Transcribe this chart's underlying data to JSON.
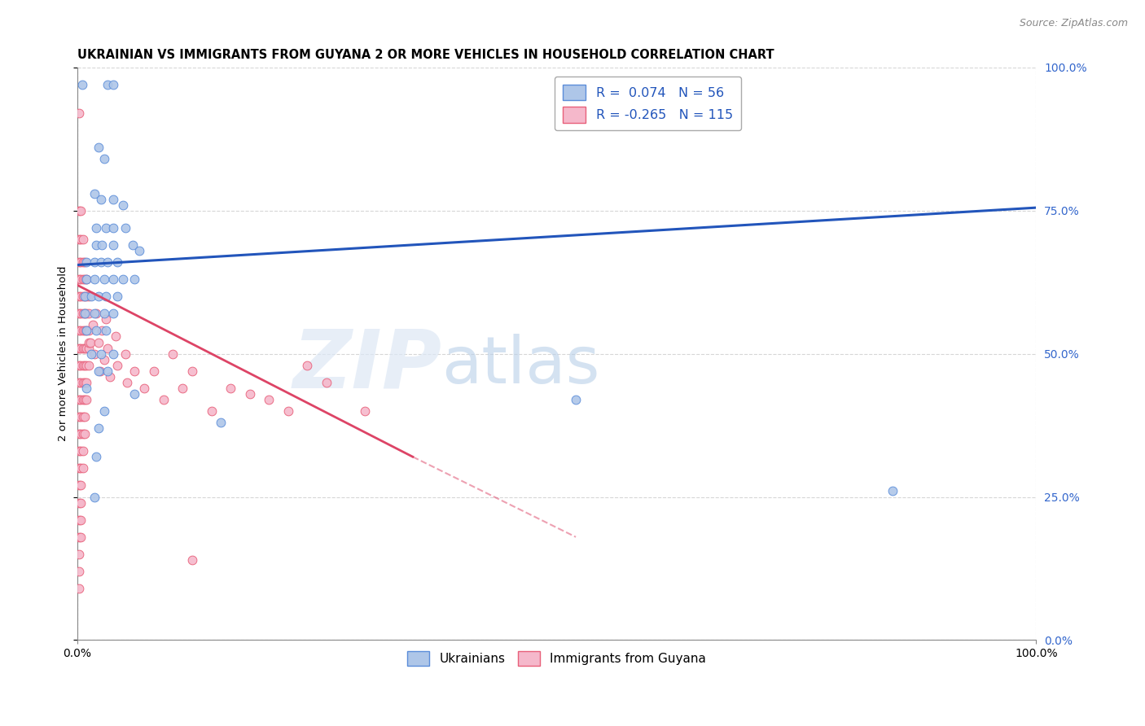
{
  "title": "UKRAINIAN VS IMMIGRANTS FROM GUYANA 2 OR MORE VEHICLES IN HOUSEHOLD CORRELATION CHART",
  "source_text": "Source: ZipAtlas.com",
  "ylabel": "2 or more Vehicles in Household",
  "xlim": [
    0,
    1.0
  ],
  "ylim": [
    0,
    1.0
  ],
  "xtick_labels": [
    "0.0%",
    "100.0%"
  ],
  "ytick_values": [
    0.0,
    0.25,
    0.5,
    0.75,
    1.0
  ],
  "ytick_labels": [
    "0.0%",
    "25.0%",
    "50.0%",
    "75.0%",
    "100.0%"
  ],
  "legend_blue_label": "R =  0.074   N = 56",
  "legend_pink_label": "R = -0.265   N = 115",
  "legend_bottom_blue": "Ukrainians",
  "legend_bottom_pink": "Immigrants from Guyana",
  "watermark_zip": "ZIP",
  "watermark_atlas": "atlas",
  "blue_color": "#aec6e8",
  "blue_edge_color": "#5b8dd9",
  "pink_color": "#f5b8cb",
  "pink_edge_color": "#e8607a",
  "blue_line_color": "#2255bb",
  "pink_line_color": "#dd4466",
  "blue_line": [
    [
      0.0,
      0.655
    ],
    [
      1.0,
      0.755
    ]
  ],
  "pink_line_solid": [
    [
      0.0,
      0.62
    ],
    [
      0.35,
      0.32
    ]
  ],
  "pink_line_dashed": [
    [
      0.35,
      0.32
    ],
    [
      0.52,
      0.18
    ]
  ],
  "blue_scatter": [
    [
      0.005,
      0.97
    ],
    [
      0.032,
      0.97
    ],
    [
      0.038,
      0.97
    ],
    [
      0.022,
      0.86
    ],
    [
      0.028,
      0.84
    ],
    [
      0.018,
      0.78
    ],
    [
      0.025,
      0.77
    ],
    [
      0.038,
      0.77
    ],
    [
      0.048,
      0.76
    ],
    [
      0.02,
      0.72
    ],
    [
      0.03,
      0.72
    ],
    [
      0.038,
      0.72
    ],
    [
      0.05,
      0.72
    ],
    [
      0.02,
      0.69
    ],
    [
      0.026,
      0.69
    ],
    [
      0.038,
      0.69
    ],
    [
      0.058,
      0.69
    ],
    [
      0.065,
      0.68
    ],
    [
      0.01,
      0.66
    ],
    [
      0.018,
      0.66
    ],
    [
      0.025,
      0.66
    ],
    [
      0.032,
      0.66
    ],
    [
      0.042,
      0.66
    ],
    [
      0.01,
      0.63
    ],
    [
      0.018,
      0.63
    ],
    [
      0.028,
      0.63
    ],
    [
      0.038,
      0.63
    ],
    [
      0.048,
      0.63
    ],
    [
      0.06,
      0.63
    ],
    [
      0.008,
      0.6
    ],
    [
      0.015,
      0.6
    ],
    [
      0.022,
      0.6
    ],
    [
      0.03,
      0.6
    ],
    [
      0.042,
      0.6
    ],
    [
      0.008,
      0.57
    ],
    [
      0.018,
      0.57
    ],
    [
      0.028,
      0.57
    ],
    [
      0.038,
      0.57
    ],
    [
      0.01,
      0.54
    ],
    [
      0.02,
      0.54
    ],
    [
      0.03,
      0.54
    ],
    [
      0.015,
      0.5
    ],
    [
      0.025,
      0.5
    ],
    [
      0.038,
      0.5
    ],
    [
      0.022,
      0.47
    ],
    [
      0.032,
      0.47
    ],
    [
      0.01,
      0.44
    ],
    [
      0.028,
      0.4
    ],
    [
      0.022,
      0.37
    ],
    [
      0.02,
      0.32
    ],
    [
      0.018,
      0.25
    ],
    [
      0.06,
      0.43
    ],
    [
      0.15,
      0.38
    ],
    [
      0.52,
      0.42
    ],
    [
      0.85,
      0.26
    ]
  ],
  "pink_scatter": [
    [
      0.002,
      0.92
    ],
    [
      0.002,
      0.75
    ],
    [
      0.004,
      0.75
    ],
    [
      0.002,
      0.7
    ],
    [
      0.004,
      0.7
    ],
    [
      0.006,
      0.7
    ],
    [
      0.002,
      0.66
    ],
    [
      0.004,
      0.66
    ],
    [
      0.006,
      0.66
    ],
    [
      0.008,
      0.66
    ],
    [
      0.002,
      0.63
    ],
    [
      0.004,
      0.63
    ],
    [
      0.006,
      0.63
    ],
    [
      0.008,
      0.63
    ],
    [
      0.01,
      0.63
    ],
    [
      0.002,
      0.6
    ],
    [
      0.004,
      0.6
    ],
    [
      0.006,
      0.6
    ],
    [
      0.008,
      0.6
    ],
    [
      0.01,
      0.6
    ],
    [
      0.012,
      0.6
    ],
    [
      0.002,
      0.57
    ],
    [
      0.004,
      0.57
    ],
    [
      0.006,
      0.57
    ],
    [
      0.008,
      0.57
    ],
    [
      0.01,
      0.57
    ],
    [
      0.012,
      0.57
    ],
    [
      0.002,
      0.54
    ],
    [
      0.004,
      0.54
    ],
    [
      0.006,
      0.54
    ],
    [
      0.008,
      0.54
    ],
    [
      0.01,
      0.54
    ],
    [
      0.012,
      0.54
    ],
    [
      0.002,
      0.51
    ],
    [
      0.004,
      0.51
    ],
    [
      0.006,
      0.51
    ],
    [
      0.008,
      0.51
    ],
    [
      0.01,
      0.51
    ],
    [
      0.012,
      0.51
    ],
    [
      0.002,
      0.48
    ],
    [
      0.004,
      0.48
    ],
    [
      0.006,
      0.48
    ],
    [
      0.008,
      0.48
    ],
    [
      0.01,
      0.48
    ],
    [
      0.012,
      0.48
    ],
    [
      0.002,
      0.45
    ],
    [
      0.004,
      0.45
    ],
    [
      0.006,
      0.45
    ],
    [
      0.008,
      0.45
    ],
    [
      0.01,
      0.45
    ],
    [
      0.002,
      0.42
    ],
    [
      0.004,
      0.42
    ],
    [
      0.006,
      0.42
    ],
    [
      0.008,
      0.42
    ],
    [
      0.01,
      0.42
    ],
    [
      0.002,
      0.39
    ],
    [
      0.004,
      0.39
    ],
    [
      0.006,
      0.39
    ],
    [
      0.008,
      0.39
    ],
    [
      0.002,
      0.36
    ],
    [
      0.004,
      0.36
    ],
    [
      0.006,
      0.36
    ],
    [
      0.008,
      0.36
    ],
    [
      0.002,
      0.33
    ],
    [
      0.004,
      0.33
    ],
    [
      0.006,
      0.33
    ],
    [
      0.002,
      0.3
    ],
    [
      0.004,
      0.3
    ],
    [
      0.006,
      0.3
    ],
    [
      0.002,
      0.27
    ],
    [
      0.004,
      0.27
    ],
    [
      0.002,
      0.24
    ],
    [
      0.004,
      0.24
    ],
    [
      0.002,
      0.21
    ],
    [
      0.004,
      0.21
    ],
    [
      0.002,
      0.18
    ],
    [
      0.004,
      0.18
    ],
    [
      0.002,
      0.15
    ],
    [
      0.002,
      0.12
    ],
    [
      0.002,
      0.09
    ],
    [
      0.012,
      0.52
    ],
    [
      0.014,
      0.52
    ],
    [
      0.016,
      0.55
    ],
    [
      0.018,
      0.5
    ],
    [
      0.02,
      0.57
    ],
    [
      0.022,
      0.52
    ],
    [
      0.024,
      0.47
    ],
    [
      0.026,
      0.54
    ],
    [
      0.028,
      0.49
    ],
    [
      0.03,
      0.56
    ],
    [
      0.032,
      0.51
    ],
    [
      0.034,
      0.46
    ],
    [
      0.04,
      0.53
    ],
    [
      0.042,
      0.48
    ],
    [
      0.05,
      0.5
    ],
    [
      0.052,
      0.45
    ],
    [
      0.06,
      0.47
    ],
    [
      0.07,
      0.44
    ],
    [
      0.08,
      0.47
    ],
    [
      0.09,
      0.42
    ],
    [
      0.1,
      0.5
    ],
    [
      0.11,
      0.44
    ],
    [
      0.12,
      0.47
    ],
    [
      0.14,
      0.4
    ],
    [
      0.16,
      0.44
    ],
    [
      0.18,
      0.43
    ],
    [
      0.2,
      0.42
    ],
    [
      0.22,
      0.4
    ],
    [
      0.24,
      0.48
    ],
    [
      0.26,
      0.45
    ],
    [
      0.3,
      0.4
    ],
    [
      0.12,
      0.14
    ]
  ],
  "background_color": "#ffffff",
  "grid_color": "#cccccc",
  "title_fontsize": 10.5,
  "tick_fontsize": 10,
  "right_tick_color": "#3366cc",
  "marker_size": 60
}
